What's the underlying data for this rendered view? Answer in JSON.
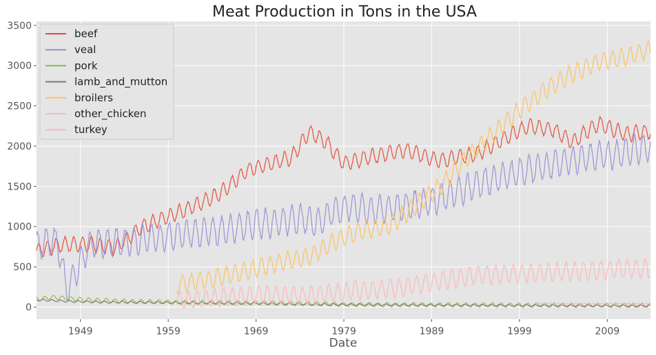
{
  "chart_data": {
    "type": "line",
    "title": "Meat Production in Tons in the USA",
    "xlabel": "Date",
    "ylabel": "",
    "x_ticks": [
      "1949",
      "1959",
      "1969",
      "1979",
      "1989",
      "1999",
      "2009"
    ],
    "y_ticks": [
      "0",
      "500",
      "1000",
      "1500",
      "2000",
      "2500",
      "3000",
      "3500"
    ],
    "xlim": [
      "1944-01",
      "2013-12"
    ],
    "ylim": [
      -150,
      3550
    ],
    "grid": true,
    "legend_position": "top-left",
    "series": [
      {
        "name": "beef",
        "color": "#e24a33",
        "x": [
          "1944-01",
          "1947-01",
          "1950-01",
          "1953-01",
          "1956-01",
          "1959-01",
          "1962-01",
          "1965-01",
          "1968-01",
          "1971-01",
          "1973-01",
          "1975-01",
          "1977-01",
          "1979-01",
          "1982-01",
          "1986-01",
          "1990-01",
          "1994-01",
          "1997-01",
          "2000-01",
          "2003-01",
          "2005-01",
          "2008-01",
          "2011-01",
          "2013-12"
        ],
        "values": [
          700,
          780,
          780,
          740,
          1000,
          1120,
          1260,
          1420,
          1700,
          1800,
          1850,
          2180,
          2050,
          1780,
          1870,
          1950,
          1820,
          1900,
          2080,
          2250,
          2200,
          2050,
          2280,
          2150,
          2180
        ],
        "amplitude": 90
      },
      {
        "name": "veal",
        "color": "#988ed5",
        "x": [
          "1944-01",
          "1946-06",
          "1947-06",
          "1950-01",
          "1953-01",
          "1956-01",
          "1959-01",
          "1962-01",
          "1965-01",
          "1968-01",
          "1971-01",
          "1974-01",
          "1976-01",
          "1978-01",
          "1980-01",
          "1982-01",
          "1986-01",
          "1990-01",
          "1994-01",
          "1998-01",
          "2002-01",
          "2006-01",
          "2010-01",
          "2013-12"
        ],
        "values": [
          780,
          820,
          200,
          780,
          800,
          840,
          880,
          920,
          950,
          1020,
          1050,
          1100,
          1050,
          1200,
          1250,
          1200,
          1250,
          1350,
          1520,
          1650,
          1750,
          1850,
          1900,
          2000
        ],
        "amplitude": 170
      },
      {
        "name": "pork",
        "color": "#8eba42",
        "x": [
          "1944-01",
          "1946-01",
          "1950-01",
          "1955-01",
          "1960-01",
          "1966-01",
          "1970-01",
          "1975-01",
          "1978-01",
          "1980-01",
          "1990-01",
          "2000-01",
          "2013-12"
        ],
        "values": [
          100,
          120,
          90,
          70,
          60,
          55,
          50,
          45,
          35,
          30,
          28,
          25,
          22
        ],
        "amplitude": 25
      },
      {
        "name": "lamb_and_mutton",
        "color": "#777777",
        "x": [
          "1944-01",
          "1948-01",
          "1952-01",
          "1956-01",
          "1960-01",
          "1965-01",
          "1970-01",
          "1975-01",
          "1980-01",
          "1990-01",
          "2000-01",
          "2013-12"
        ],
        "values": [
          90,
          70,
          60,
          60,
          55,
          50,
          45,
          35,
          30,
          25,
          20,
          15
        ],
        "amplitude": 12
      },
      {
        "name": "broilers",
        "color": "#fbc15e",
        "x": [
          "1960-01",
          "1963-01",
          "1966-01",
          "1969-01",
          "1972-01",
          "1975-01",
          "1978-01",
          "1981-01",
          "1984-01",
          "1987-01",
          "1990-01",
          "1993-01",
          "1996-01",
          "1999-01",
          "2002-01",
          "2005-01",
          "2008-01",
          "2011-01",
          "2013-12"
        ],
        "values": [
          280,
          330,
          400,
          480,
          560,
          620,
          820,
          950,
          1000,
          1250,
          1500,
          1850,
          2150,
          2450,
          2700,
          2900,
          3050,
          3100,
          3200
        ],
        "amplitude": 110
      },
      {
        "name": "other_chicken",
        "color": "#ffb5b8",
        "x": [
          "2001-01",
          "2005-01",
          "2009-01",
          "2013-12"
        ],
        "values": [
          45,
          40,
          42,
          38
        ],
        "amplitude": 6
      },
      {
        "name": "turkey",
        "color": "#ffb5b8",
        "x": [
          "1960-01",
          "1965-01",
          "1970-01",
          "1975-01",
          "1980-01",
          "1985-01",
          "1990-01",
          "1995-01",
          "2000-01",
          "2005-01",
          "2010-01",
          "2013-12"
        ],
        "values": [
          80,
          120,
          150,
          140,
          200,
          230,
          330,
          400,
          420,
          440,
          470,
          480
        ],
        "amplitude": 110
      }
    ]
  }
}
